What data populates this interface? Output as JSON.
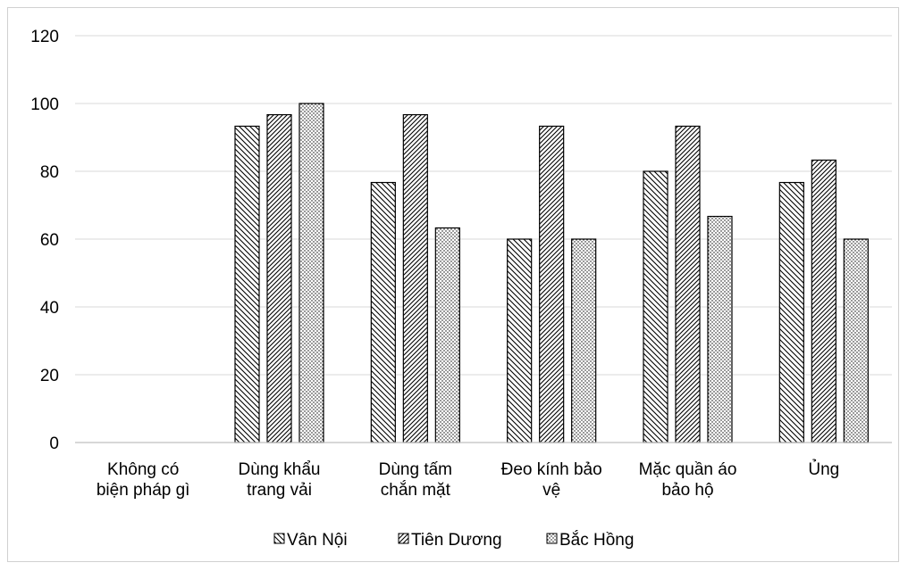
{
  "chart_data": {
    "type": "bar",
    "title": "",
    "xlabel": "",
    "ylabel": "",
    "ylim": [
      0,
      120
    ],
    "yticks": [
      0,
      20,
      40,
      60,
      80,
      100,
      120
    ],
    "grid": true,
    "legend_position": "bottom",
    "categories": [
      [
        "Không có",
        "biện pháp gì"
      ],
      [
        "Dùng khẩu",
        "trang vải"
      ],
      [
        "Dùng tấm",
        "chắn mặt"
      ],
      [
        "Đeo kính bảo",
        "vệ"
      ],
      [
        "Mặc quần áo",
        "bảo hộ"
      ],
      [
        "Ủng"
      ]
    ],
    "series": [
      {
        "name": "Vân Nội",
        "pattern": "diag-back",
        "values": [
          0,
          93.3,
          76.7,
          60,
          80,
          76.7
        ]
      },
      {
        "name": "Tiên Dương",
        "pattern": "diag-fwd",
        "values": [
          0,
          96.7,
          96.7,
          93.3,
          93.3,
          83.3
        ]
      },
      {
        "name": "Bắc Hồng",
        "pattern": "dots",
        "values": [
          0,
          100,
          63.3,
          60,
          66.7,
          60
        ]
      }
    ],
    "colors": {
      "bar_stroke": "#000000",
      "grid": "#d9d9d9",
      "axis": "#bfbfbf"
    }
  }
}
